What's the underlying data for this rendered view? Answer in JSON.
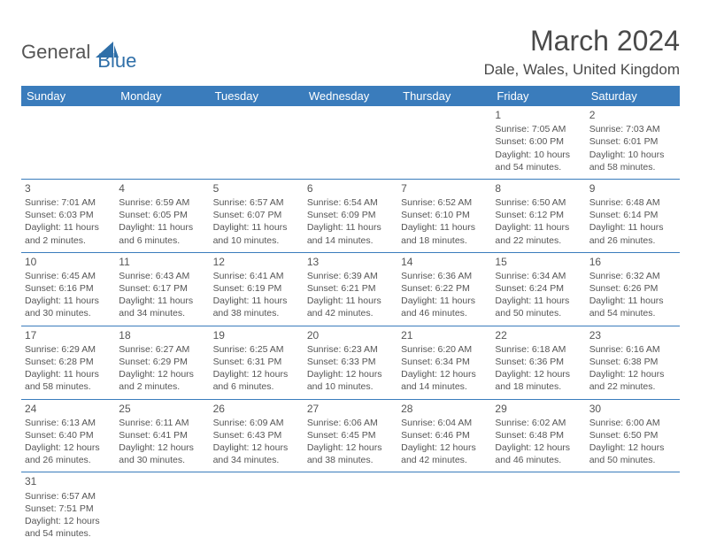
{
  "logo": {
    "text_a": "General",
    "text_b": "Blue"
  },
  "title": "March 2024",
  "location": "Dale, Wales, United Kingdom",
  "colors": {
    "header_bg": "#3a7cbc",
    "header_fg": "#ffffff",
    "grid_line": "#3a7cbc",
    "text": "#555555",
    "logo_blue": "#2f6fa8"
  },
  "weekdays": [
    "Sunday",
    "Monday",
    "Tuesday",
    "Wednesday",
    "Thursday",
    "Friday",
    "Saturday"
  ],
  "days": [
    {
      "n": 1,
      "sr": "7:05 AM",
      "ss": "6:00 PM",
      "dl": "10 hours and 54 minutes."
    },
    {
      "n": 2,
      "sr": "7:03 AM",
      "ss": "6:01 PM",
      "dl": "10 hours and 58 minutes."
    },
    {
      "n": 3,
      "sr": "7:01 AM",
      "ss": "6:03 PM",
      "dl": "11 hours and 2 minutes."
    },
    {
      "n": 4,
      "sr": "6:59 AM",
      "ss": "6:05 PM",
      "dl": "11 hours and 6 minutes."
    },
    {
      "n": 5,
      "sr": "6:57 AM",
      "ss": "6:07 PM",
      "dl": "11 hours and 10 minutes."
    },
    {
      "n": 6,
      "sr": "6:54 AM",
      "ss": "6:09 PM",
      "dl": "11 hours and 14 minutes."
    },
    {
      "n": 7,
      "sr": "6:52 AM",
      "ss": "6:10 PM",
      "dl": "11 hours and 18 minutes."
    },
    {
      "n": 8,
      "sr": "6:50 AM",
      "ss": "6:12 PM",
      "dl": "11 hours and 22 minutes."
    },
    {
      "n": 9,
      "sr": "6:48 AM",
      "ss": "6:14 PM",
      "dl": "11 hours and 26 minutes."
    },
    {
      "n": 10,
      "sr": "6:45 AM",
      "ss": "6:16 PM",
      "dl": "11 hours and 30 minutes."
    },
    {
      "n": 11,
      "sr": "6:43 AM",
      "ss": "6:17 PM",
      "dl": "11 hours and 34 minutes."
    },
    {
      "n": 12,
      "sr": "6:41 AM",
      "ss": "6:19 PM",
      "dl": "11 hours and 38 minutes."
    },
    {
      "n": 13,
      "sr": "6:39 AM",
      "ss": "6:21 PM",
      "dl": "11 hours and 42 minutes."
    },
    {
      "n": 14,
      "sr": "6:36 AM",
      "ss": "6:22 PM",
      "dl": "11 hours and 46 minutes."
    },
    {
      "n": 15,
      "sr": "6:34 AM",
      "ss": "6:24 PM",
      "dl": "11 hours and 50 minutes."
    },
    {
      "n": 16,
      "sr": "6:32 AM",
      "ss": "6:26 PM",
      "dl": "11 hours and 54 minutes."
    },
    {
      "n": 17,
      "sr": "6:29 AM",
      "ss": "6:28 PM",
      "dl": "11 hours and 58 minutes."
    },
    {
      "n": 18,
      "sr": "6:27 AM",
      "ss": "6:29 PM",
      "dl": "12 hours and 2 minutes."
    },
    {
      "n": 19,
      "sr": "6:25 AM",
      "ss": "6:31 PM",
      "dl": "12 hours and 6 minutes."
    },
    {
      "n": 20,
      "sr": "6:23 AM",
      "ss": "6:33 PM",
      "dl": "12 hours and 10 minutes."
    },
    {
      "n": 21,
      "sr": "6:20 AM",
      "ss": "6:34 PM",
      "dl": "12 hours and 14 minutes."
    },
    {
      "n": 22,
      "sr": "6:18 AM",
      "ss": "6:36 PM",
      "dl": "12 hours and 18 minutes."
    },
    {
      "n": 23,
      "sr": "6:16 AM",
      "ss": "6:38 PM",
      "dl": "12 hours and 22 minutes."
    },
    {
      "n": 24,
      "sr": "6:13 AM",
      "ss": "6:40 PM",
      "dl": "12 hours and 26 minutes."
    },
    {
      "n": 25,
      "sr": "6:11 AM",
      "ss": "6:41 PM",
      "dl": "12 hours and 30 minutes."
    },
    {
      "n": 26,
      "sr": "6:09 AM",
      "ss": "6:43 PM",
      "dl": "12 hours and 34 minutes."
    },
    {
      "n": 27,
      "sr": "6:06 AM",
      "ss": "6:45 PM",
      "dl": "12 hours and 38 minutes."
    },
    {
      "n": 28,
      "sr": "6:04 AM",
      "ss": "6:46 PM",
      "dl": "12 hours and 42 minutes."
    },
    {
      "n": 29,
      "sr": "6:02 AM",
      "ss": "6:48 PM",
      "dl": "12 hours and 46 minutes."
    },
    {
      "n": 30,
      "sr": "6:00 AM",
      "ss": "6:50 PM",
      "dl": "12 hours and 50 minutes."
    },
    {
      "n": 31,
      "sr": "6:57 AM",
      "ss": "7:51 PM",
      "dl": "12 hours and 54 minutes."
    }
  ],
  "layout": {
    "first_day_column_index": 5,
    "rows": 6,
    "cols": 7
  },
  "labels": {
    "sunrise_prefix": "Sunrise: ",
    "sunset_prefix": "Sunset: ",
    "daylight_prefix": "Daylight: "
  }
}
